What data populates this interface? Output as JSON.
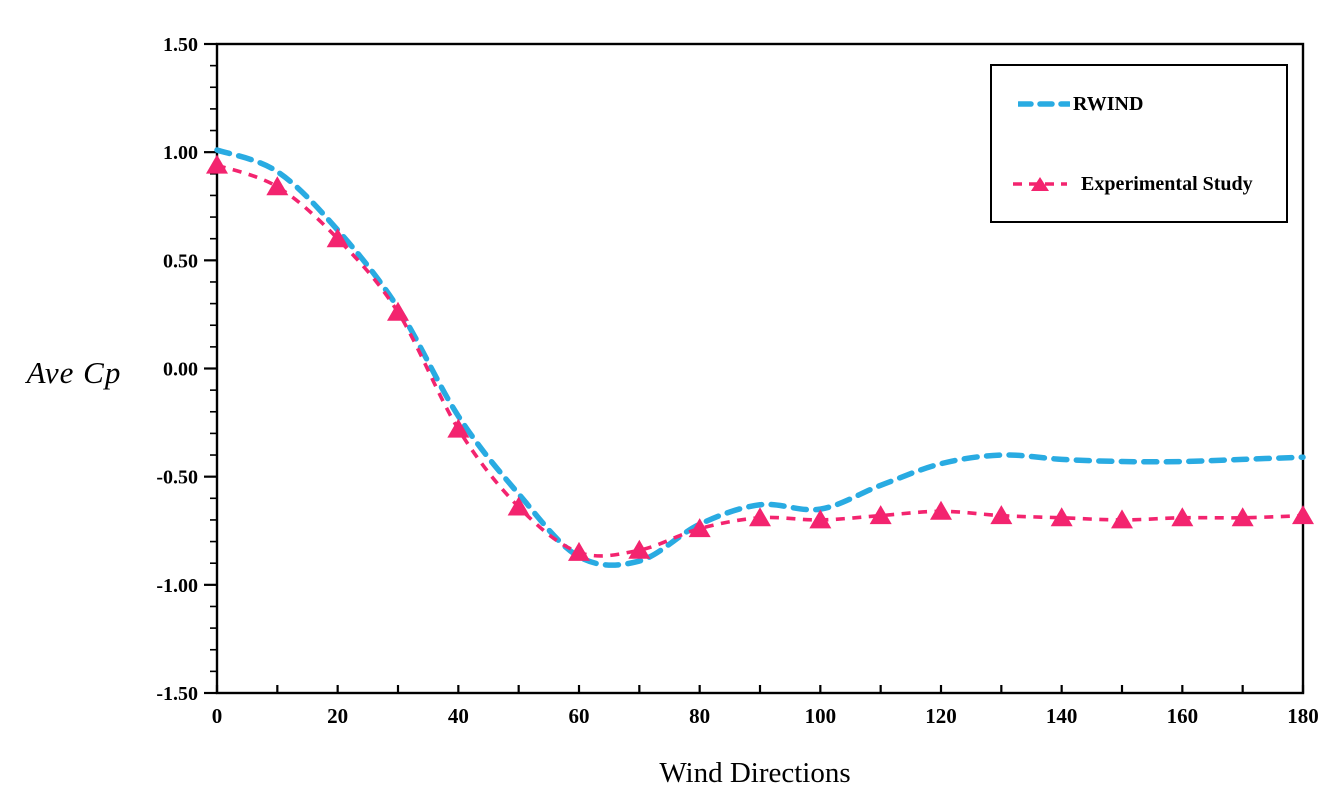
{
  "chart_data": {
    "type": "line",
    "title": "",
    "xlabel": "Wind Directions",
    "ylabel": "Ave Cp",
    "xlim": [
      0,
      180
    ],
    "ylim": [
      -1.5,
      1.5
    ],
    "grid": false,
    "legend_position": "top-right",
    "x_minor_tick_step": 10,
    "x_label_step": 20,
    "y_major_tick_step": 0.5,
    "y_minor_tick_step": 0.1,
    "x_tick_labels": [
      "0",
      "20",
      "40",
      "60",
      "80",
      "100",
      "120",
      "140",
      "160",
      "180"
    ],
    "x_tick_values": [
      0,
      20,
      40,
      60,
      80,
      100,
      120,
      140,
      160,
      180
    ],
    "y_tick_labels": [
      "1.50",
      "1.00",
      "0.50",
      "0.00",
      "-0.50",
      "-1.00",
      "-1.50"
    ],
    "y_tick_values": [
      1.5,
      1.0,
      0.5,
      0.0,
      -0.5,
      -1.0,
      -1.5
    ],
    "x": [
      0,
      10,
      20,
      30,
      40,
      50,
      60,
      70,
      80,
      90,
      100,
      110,
      120,
      130,
      140,
      150,
      160,
      170,
      180
    ],
    "series": [
      {
        "name": "RWIND",
        "color": "#29ABE2",
        "line_style": "dashed",
        "marker": "none",
        "values": [
          1.01,
          0.91,
          0.64,
          0.28,
          -0.22,
          -0.58,
          -0.87,
          -0.89,
          -0.72,
          -0.63,
          -0.65,
          -0.54,
          -0.44,
          -0.4,
          -0.42,
          -0.43,
          -0.43,
          -0.42,
          -0.41
        ]
      },
      {
        "name": "Experimental Study",
        "color": "#F3246F",
        "line_style": "dashed",
        "marker": "triangle",
        "values": [
          0.94,
          0.84,
          0.6,
          0.26,
          -0.28,
          -0.64,
          -0.85,
          -0.84,
          -0.74,
          -0.69,
          -0.7,
          -0.68,
          -0.66,
          -0.68,
          -0.69,
          -0.7,
          -0.69,
          -0.69,
          -0.68
        ]
      }
    ],
    "axis_color": "#000000",
    "text_color": "#000000"
  }
}
